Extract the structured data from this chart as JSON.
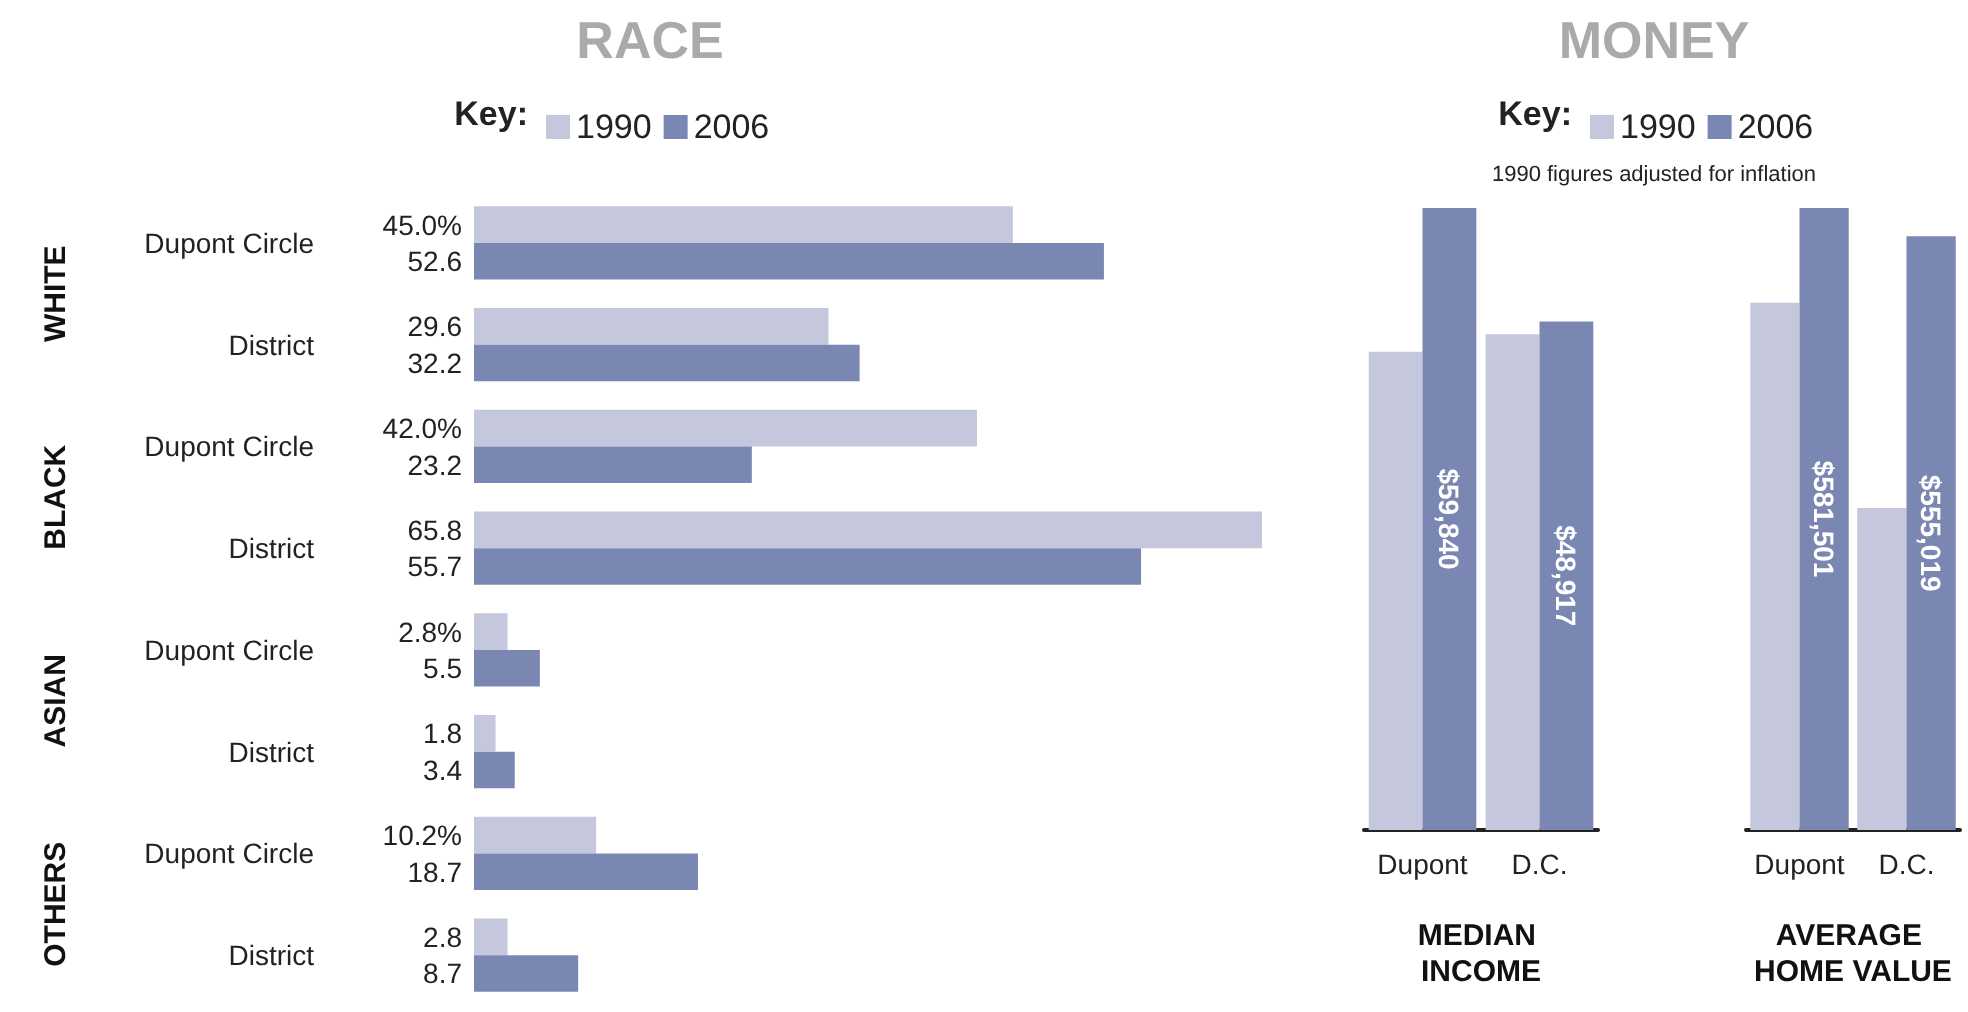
{
  "chart_data": [
    {
      "type": "bar",
      "title": "RACE",
      "orientation": "horizontal",
      "legend": "top",
      "legend_title": "Key:",
      "tick_labels": "y",
      "categories": [
        "Dupont Circle",
        "District",
        "Dupont Circle",
        "District",
        "Dupont Circle",
        "District",
        "Dupont Circle",
        "District"
      ],
      "annotations": [
        "WHITE",
        "BLACK",
        "ASIAN",
        "OTHERS"
      ],
      "series": [
        {
          "name": "1990",
          "color": "#c5c7dd",
          "values": [
            45.0,
            29.6,
            42.0,
            65.8,
            2.8,
            1.8,
            10.2,
            2.8
          ],
          "value_labels": [
            "45.0%",
            "29.6",
            "42.0%",
            "65.8",
            "2.8%",
            "1.8",
            "10.2%",
            "2.8"
          ]
        },
        {
          "name": "2006",
          "color": "#7b87b3",
          "values": [
            52.6,
            32.2,
            23.2,
            55.7,
            5.5,
            3.4,
            18.7,
            8.7
          ],
          "value_labels": [
            "52.6",
            "32.2",
            "23.2",
            "55.7",
            "5.5",
            "3.4",
            "18.7",
            "8.7"
          ]
        }
      ]
    },
    {
      "type": "bar",
      "tick_labels": "x",
      "xlabel": "MEDIAN INCOME",
      "categories": [
        "Dupont",
        "D.C."
      ],
      "series": [
        {
          "color": "#c5c7dd",
          "values": [
            46000,
            47700
          ],
          "value_labels": [
            null,
            null
          ]
        },
        {
          "color": "#7b87b3",
          "values": [
            59840,
            48917
          ],
          "value_labels": [
            "$59,840",
            "$48,917"
          ]
        }
      ]
    },
    {
      "type": "bar",
      "title": "MONEY",
      "subtitle": "1990 figures adjusted for inflation",
      "legend": "top",
      "legend_title": "Key:",
      "tick_labels": "x",
      "xlabel": "AVERAGE HOME VALUE",
      "categories": [
        "Dupont",
        "D.C."
      ],
      "series": [
        {
          "name": "1990",
          "color": "#c5c7dd",
          "values": [
            493000,
            301000
          ],
          "value_labels": [
            null,
            null
          ]
        },
        {
          "name": "2006",
          "color": "#7b87b3",
          "values": [
            581501,
            555019
          ],
          "value_labels": [
            "$581,501",
            "$555,019"
          ]
        }
      ]
    }
  ]
}
